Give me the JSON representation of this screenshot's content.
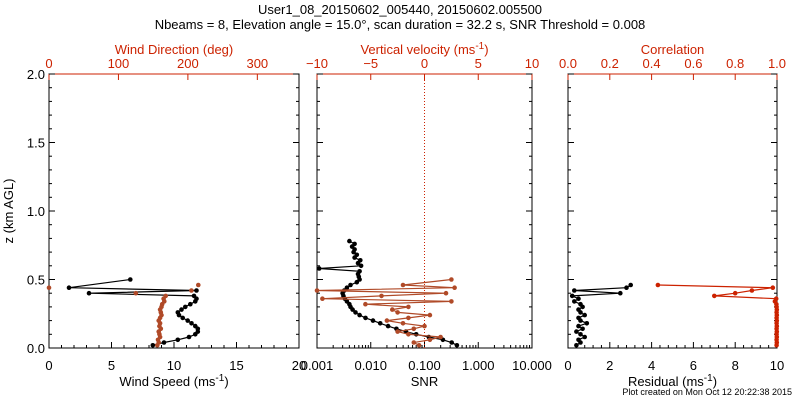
{
  "header": {
    "title_line1": "User1_08_20150602_005440, 20150602.005500",
    "title_line2": "Nbeams = 8, Elevation angle = 15.0°, scan duration = 32.2 s, SNR Threshold = 0.008"
  },
  "footer": "Plot created on Mon Oct 12 20:22:38 2015",
  "colors": {
    "black": "#000000",
    "red": "#cc2200",
    "brown": "#b04a28"
  },
  "chart_data": [
    {
      "type": "scatter",
      "panel": "wind",
      "ylabel": "z (km AGL)",
      "ylim": [
        0,
        2.0
      ],
      "y_ticks": [
        "0.0",
        "0.5",
        "1.0",
        "1.5",
        "2.0"
      ],
      "xlabel": "Wind Speed (ms",
      "xlabel_sup": "-1",
      "xlabel_after": ")",
      "xlim": [
        0,
        20
      ],
      "x_ticks": [
        "0",
        "5",
        "10",
        "15",
        "20"
      ],
      "top_xlabel": "Wind Direction (deg)",
      "top_xlim": [
        0,
        360
      ],
      "top_x_ticks": [
        "0",
        "100",
        "200",
        "300"
      ],
      "series": [
        {
          "color": "black",
          "axis": "bottom",
          "z": [
            0.02,
            0.04,
            0.06,
            0.08,
            0.1,
            0.12,
            0.14,
            0.16,
            0.18,
            0.2,
            0.22,
            0.24,
            0.26,
            0.28,
            0.3,
            0.32,
            0.34,
            0.36,
            0.38,
            0.4,
            0.42,
            0.44,
            0.5
          ],
          "values": [
            8.3,
            9.2,
            10.3,
            11.2,
            11.7,
            11.9,
            11.9,
            11.7,
            11.4,
            11.1,
            10.7,
            10.4,
            10.3,
            10.6,
            10.9,
            11.3,
            11.7,
            11.8,
            11.6,
            3.2,
            11.8,
            1.6,
            6.5
          ]
        },
        {
          "color": "brown",
          "axis": "top",
          "z": [
            0.02,
            0.04,
            0.06,
            0.08,
            0.1,
            0.12,
            0.14,
            0.16,
            0.18,
            0.2,
            0.22,
            0.24,
            0.26,
            0.28,
            0.3,
            0.32,
            0.34,
            0.36,
            0.38,
            0.4,
            0.42,
            0.44,
            0.46
          ],
          "values": [
            156,
            158,
            157,
            160,
            159,
            158,
            161,
            159,
            160,
            158,
            160,
            162,
            161,
            160,
            162,
            163,
            166,
            165,
            168,
            125,
            205,
            0,
            215
          ]
        }
      ]
    },
    {
      "type": "line",
      "panel": "snr",
      "xlabel": "SNR",
      "x_scale": "log",
      "xlim": [
        0.001,
        10.0
      ],
      "x_ticks": [
        "0.001",
        "0.010",
        "0.100",
        "1.000",
        "10.000"
      ],
      "top_xlabel": "Vertical velocity (ms",
      "top_xlabel_sup": "-1",
      "top_xlabel_after": ")",
      "top_xlim": [
        -10,
        10
      ],
      "top_x_ticks": [
        "−10",
        "−5",
        "0",
        "5",
        "10"
      ],
      "series": [
        {
          "color": "black",
          "axis": "bottom",
          "z": [
            0.02,
            0.04,
            0.06,
            0.08,
            0.1,
            0.12,
            0.14,
            0.16,
            0.18,
            0.2,
            0.22,
            0.24,
            0.26,
            0.28,
            0.3,
            0.32,
            0.34,
            0.36,
            0.38,
            0.4,
            0.42,
            0.44,
            0.46,
            0.48,
            0.5,
            0.52,
            0.54,
            0.56,
            0.58,
            0.6,
            0.62,
            0.64,
            0.66,
            0.68,
            0.7,
            0.72,
            0.74,
            0.76,
            0.78
          ],
          "values": [
            0.4,
            0.32,
            0.22,
            0.12,
            0.07,
            0.045,
            0.03,
            0.021,
            0.015,
            0.011,
            0.008,
            0.0062,
            0.0052,
            0.0046,
            0.0042,
            0.004,
            0.0036,
            0.0033,
            0.0031,
            0.003,
            0.0032,
            0.0036,
            0.0042,
            0.0055,
            0.0062,
            0.006,
            0.0058,
            0.0062,
            0.0011,
            0.0066,
            0.0058,
            0.0064,
            0.005,
            0.0055,
            0.0048,
            0.005,
            0.0045,
            0.005,
            0.004
          ]
        },
        {
          "color": "brown",
          "axis": "top",
          "z": [
            0.02,
            0.04,
            0.06,
            0.08,
            0.1,
            0.12,
            0.14,
            0.16,
            0.18,
            0.2,
            0.22,
            0.24,
            0.26,
            0.28,
            0.3,
            0.32,
            0.34,
            0.36,
            0.38,
            0.4,
            0.42,
            0.44,
            0.46,
            0.5
          ],
          "values": [
            -0.5,
            -1.0,
            0.5,
            1.5,
            -1.5,
            -2.5,
            -1.0,
            0.0,
            -2.0,
            -3.5,
            -1.5,
            0.5,
            -2.5,
            -3.0,
            -1.5,
            -5.5,
            2.5,
            -9.5,
            -4.0,
            2.0,
            -10.0,
            2.8,
            -2.0,
            2.5
          ]
        }
      ]
    },
    {
      "type": "line",
      "panel": "correlation",
      "xlabel": "Residual (ms",
      "xlabel_sup": "-1",
      "xlabel_after": ")",
      "xlim": [
        0,
        10
      ],
      "x_ticks": [
        "0",
        "2",
        "4",
        "6",
        "8",
        "10"
      ],
      "top_xlabel": "Correlation",
      "top_xlim": [
        0.0,
        1.0
      ],
      "top_x_ticks": [
        "0.0",
        "0.2",
        "0.4",
        "0.6",
        "0.8",
        "1.0"
      ],
      "series": [
        {
          "color": "black",
          "axis": "bottom",
          "z": [
            0.02,
            0.04,
            0.06,
            0.08,
            0.1,
            0.12,
            0.14,
            0.16,
            0.18,
            0.2,
            0.22,
            0.24,
            0.26,
            0.28,
            0.3,
            0.32,
            0.34,
            0.36,
            0.38,
            0.4,
            0.42,
            0.44,
            0.46
          ],
          "values": [
            0.4,
            0.6,
            0.5,
            0.8,
            0.6,
            0.4,
            0.7,
            0.5,
            0.9,
            0.6,
            0.5,
            0.8,
            0.6,
            0.5,
            0.7,
            0.6,
            0.3,
            0.5,
            0.2,
            2.5,
            0.3,
            2.8,
            3.0
          ]
        },
        {
          "color": "red",
          "axis": "top",
          "z": [
            0.02,
            0.04,
            0.06,
            0.08,
            0.1,
            0.12,
            0.14,
            0.16,
            0.18,
            0.2,
            0.22,
            0.24,
            0.26,
            0.28,
            0.3,
            0.32,
            0.34,
            0.36,
            0.38,
            0.4,
            0.42,
            0.44,
            0.46
          ],
          "values": [
            0.998,
            0.999,
            0.998,
            0.999,
            0.998,
            0.999,
            0.998,
            0.999,
            0.998,
            0.999,
            0.998,
            0.999,
            0.998,
            0.999,
            0.998,
            0.997,
            0.99,
            0.996,
            0.7,
            0.8,
            0.88,
            0.98,
            0.43
          ]
        }
      ]
    }
  ]
}
